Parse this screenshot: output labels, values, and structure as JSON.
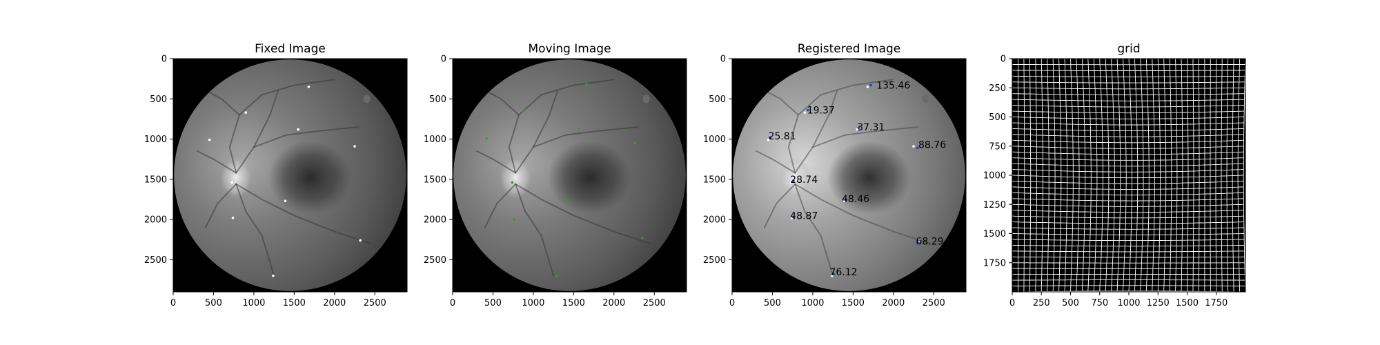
{
  "figure": {
    "background": "#ffffff"
  },
  "chart_data": [
    {
      "type": "image",
      "title": "Fixed Image",
      "content": "fundus",
      "tone": "gray",
      "xlim": [
        0,
        2900
      ],
      "ylim": [
        2900,
        0
      ],
      "xticks": [
        0,
        500,
        1000,
        1500,
        2000,
        2500
      ],
      "yticks": [
        0,
        500,
        1000,
        1500,
        2000,
        2500
      ],
      "points": [
        {
          "x": 1680,
          "y": 350,
          "color": "#ffffff"
        },
        {
          "x": 900,
          "y": 670,
          "color": "#ffffff"
        },
        {
          "x": 450,
          "y": 1010,
          "color": "#ffffff"
        },
        {
          "x": 1550,
          "y": 880,
          "color": "#ffffff"
        },
        {
          "x": 2250,
          "y": 1090,
          "color": "#ffffff"
        },
        {
          "x": 730,
          "y": 1540,
          "color": "#ffffff"
        },
        {
          "x": 1390,
          "y": 1770,
          "color": "#ffffff"
        },
        {
          "x": 740,
          "y": 1980,
          "color": "#ffffff"
        },
        {
          "x": 2320,
          "y": 2260,
          "color": "#ffffff"
        },
        {
          "x": 1240,
          "y": 2700,
          "color": "#ffffff"
        }
      ]
    },
    {
      "type": "image",
      "title": "Moving Image",
      "content": "fundus",
      "tone": "gray",
      "xlim": [
        0,
        2900
      ],
      "ylim": [
        2900,
        0
      ],
      "xticks": [
        0,
        500,
        1000,
        1500,
        2000,
        2500
      ],
      "yticks": [
        0,
        500,
        1000,
        1500,
        2000,
        2500
      ],
      "points": [
        {
          "x": 1660,
          "y": 320,
          "color": "#2ca02c"
        },
        {
          "x": 880,
          "y": 650,
          "color": "#2ca02c"
        },
        {
          "x": 420,
          "y": 990,
          "color": "#2ca02c"
        },
        {
          "x": 1560,
          "y": 870,
          "color": "#2ca02c"
        },
        {
          "x": 2260,
          "y": 1050,
          "color": "#2ca02c"
        },
        {
          "x": 740,
          "y": 1540,
          "color": "#2ca02c"
        },
        {
          "x": 1400,
          "y": 1770,
          "color": "#2ca02c"
        },
        {
          "x": 760,
          "y": 2000,
          "color": "#2ca02c"
        },
        {
          "x": 2350,
          "y": 2230,
          "color": "#2ca02c"
        },
        {
          "x": 1290,
          "y": 2700,
          "color": "#2ca02c"
        }
      ]
    },
    {
      "type": "image",
      "title": "Registered Image",
      "content": "fundus",
      "tone": "bright",
      "xlim": [
        0,
        2900
      ],
      "ylim": [
        2900,
        0
      ],
      "xticks": [
        0,
        500,
        1000,
        1500,
        2000,
        2500
      ],
      "yticks": [
        0,
        500,
        1000,
        1500,
        2000,
        2500
      ],
      "points": [
        {
          "x": 1680,
          "y": 350,
          "color": "#ffffff"
        },
        {
          "x": 900,
          "y": 670,
          "color": "#ffffff"
        },
        {
          "x": 450,
          "y": 1010,
          "color": "#ffffff"
        },
        {
          "x": 1550,
          "y": 880,
          "color": "#ffffff"
        },
        {
          "x": 2250,
          "y": 1090,
          "color": "#ffffff"
        },
        {
          "x": 730,
          "y": 1540,
          "color": "#ffffff"
        },
        {
          "x": 1390,
          "y": 1770,
          "color": "#ffffff"
        },
        {
          "x": 740,
          "y": 1980,
          "color": "#ffffff"
        },
        {
          "x": 2320,
          "y": 2260,
          "color": "#ffffff"
        },
        {
          "x": 1240,
          "y": 2700,
          "color": "#ffffff"
        },
        {
          "x": 1720,
          "y": 330,
          "color": "#1f3fbf"
        },
        {
          "x": 940,
          "y": 640,
          "color": "#1f3fbf"
        },
        {
          "x": 470,
          "y": 980,
          "color": "#1f3fbf"
        },
        {
          "x": 1570,
          "y": 860,
          "color": "#1f3fbf"
        },
        {
          "x": 2300,
          "y": 1110,
          "color": "#1f3fbf"
        },
        {
          "x": 760,
          "y": 1520,
          "color": "#1f3fbf"
        },
        {
          "x": 1410,
          "y": 1750,
          "color": "#1f3fbf"
        },
        {
          "x": 760,
          "y": 1970,
          "color": "#1f3fbf"
        },
        {
          "x": 2300,
          "y": 2290,
          "color": "#1f3fbf"
        },
        {
          "x": 1260,
          "y": 2680,
          "color": "#1f3fbf"
        }
      ],
      "annotations": [
        {
          "text": "135.46",
          "x": 1790,
          "y": 330
        },
        {
          "text": "19.37",
          "x": 930,
          "y": 640
        },
        {
          "text": "25.81",
          "x": 450,
          "y": 960
        },
        {
          "text": "37.31",
          "x": 1550,
          "y": 850
        },
        {
          "text": "88.76",
          "x": 2310,
          "y": 1070
        },
        {
          "text": "28.74",
          "x": 720,
          "y": 1500
        },
        {
          "text": "48.46",
          "x": 1360,
          "y": 1740
        },
        {
          "text": "48.87",
          "x": 720,
          "y": 1950
        },
        {
          "text": "68.29",
          "x": 2280,
          "y": 2270
        },
        {
          "text": "76.12",
          "x": 1210,
          "y": 2650
        }
      ]
    },
    {
      "type": "image",
      "title": "grid",
      "content": "deformation-grid",
      "xlim": [
        0,
        2000
      ],
      "ylim": [
        2000,
        0
      ],
      "xticks": [
        0,
        250,
        500,
        750,
        1000,
        1250,
        1500,
        1750
      ],
      "yticks": [
        0,
        250,
        500,
        750,
        1000,
        1250,
        1500,
        1750
      ],
      "grid_spacing": 50
    }
  ]
}
